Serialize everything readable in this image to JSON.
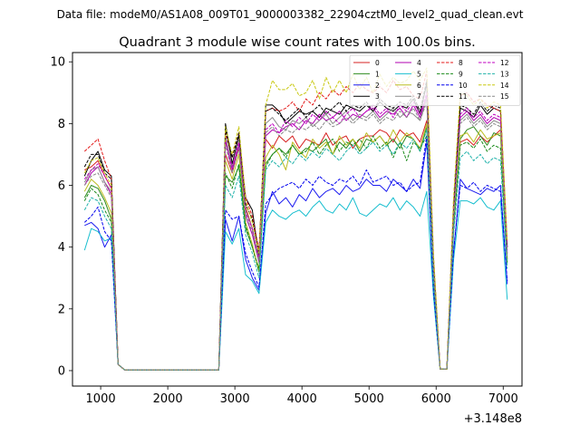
{
  "suptitle": "Data file: modeM0/AS1A08_009T01_9000003382_22904cztM0_level2_quad_clean.evt",
  "chart_data": {
    "type": "line",
    "title": "Quadrant 3 module wise count rates with 100.0s bins.",
    "xlabel": "",
    "ylabel": "",
    "x_offset_label": "+3.148e8",
    "xlim": [
      580,
      7280
    ],
    "ylim": [
      -0.5,
      10.3
    ],
    "xticks": [
      1000,
      2000,
      3000,
      4000,
      5000,
      6000,
      7000
    ],
    "yticks": [
      0,
      2,
      4,
      6,
      8,
      10
    ],
    "grid": false,
    "legend_location": "top-right",
    "legend_columns": 4,
    "x": [
      760,
      860,
      960,
      1060,
      1160,
      1260,
      1360,
      1460,
      1560,
      1660,
      1760,
      1860,
      1960,
      2060,
      2160,
      2260,
      2360,
      2460,
      2560,
      2660,
      2760,
      2860,
      2960,
      3060,
      3160,
      3260,
      3360,
      3460,
      3560,
      3660,
      3760,
      3860,
      3960,
      4060,
      4160,
      4260,
      4360,
      4460,
      4560,
      4660,
      4760,
      4860,
      4960,
      5060,
      5160,
      5260,
      5360,
      5460,
      5560,
      5660,
      5760,
      5860,
      5960,
      6060,
      6160,
      6260,
      6360,
      6460,
      6560,
      6660,
      6760,
      6860,
      6960,
      7060
    ],
    "series": [
      {
        "name": "0",
        "color": "#d62020",
        "style": "solid",
        "values": [
          6.5,
          6.6,
          6.8,
          6.3,
          5.9,
          0.2,
          0.02,
          0.02,
          0.02,
          0.02,
          0.02,
          0.02,
          0.02,
          0.02,
          0.02,
          0.02,
          0.02,
          0.02,
          0.02,
          0.02,
          0.02,
          7.0,
          6.4,
          7.2,
          5.3,
          4.6,
          3.6,
          7.5,
          7.2,
          7.6,
          7.4,
          7.6,
          7.2,
          7.5,
          7.4,
          7.3,
          7.7,
          7.3,
          7.5,
          7.6,
          7.2,
          7.5,
          7.6,
          7.6,
          7.8,
          7.7,
          7.4,
          7.8,
          7.6,
          7.7,
          7.4,
          8.1,
          3.0,
          0.05,
          0.05,
          4.9,
          7.4,
          7.5,
          7.3,
          7.6,
          7.4,
          7.6,
          7.8,
          3.6
        ]
      },
      {
        "name": "1",
        "color": "#2e8b1e",
        "style": "solid",
        "values": [
          5.6,
          6.0,
          5.9,
          5.5,
          4.9,
          0.2,
          0.02,
          0.02,
          0.02,
          0.02,
          0.02,
          0.02,
          0.02,
          0.02,
          0.02,
          0.02,
          0.02,
          0.02,
          0.02,
          0.02,
          0.02,
          6.3,
          6.1,
          6.6,
          4.6,
          4.0,
          3.3,
          6.7,
          7.0,
          7.2,
          7.0,
          7.3,
          7.0,
          7.2,
          7.1,
          7.3,
          7.5,
          7.0,
          7.4,
          7.2,
          7.5,
          7.1,
          7.5,
          7.4,
          7.6,
          7.3,
          7.5,
          7.2,
          7.6,
          7.5,
          7.1,
          7.9,
          3.0,
          0.05,
          0.05,
          4.7,
          7.5,
          7.8,
          7.9,
          7.6,
          7.3,
          7.7,
          7.6,
          3.5
        ]
      },
      {
        "name": "2",
        "color": "#1c1cf0",
        "style": "solid",
        "values": [
          4.7,
          4.8,
          4.6,
          4.0,
          4.4,
          0.2,
          0.02,
          0.02,
          0.02,
          0.02,
          0.02,
          0.02,
          0.02,
          0.02,
          0.02,
          0.02,
          0.02,
          0.02,
          0.02,
          0.02,
          0.02,
          4.9,
          4.2,
          5.0,
          3.6,
          3.0,
          2.6,
          5.1,
          5.8,
          5.4,
          5.6,
          5.3,
          5.7,
          5.5,
          5.9,
          5.6,
          5.8,
          5.9,
          5.7,
          6.0,
          5.8,
          5.9,
          6.2,
          6.0,
          6.0,
          5.8,
          6.2,
          6.0,
          5.8,
          6.2,
          5.9,
          7.4,
          2.5,
          0.05,
          0.05,
          3.8,
          6.2,
          5.9,
          5.8,
          5.7,
          5.9,
          5.8,
          6.0,
          2.8
        ]
      },
      {
        "name": "3",
        "color": "#000000",
        "style": "solid",
        "values": [
          6.3,
          6.8,
          7.1,
          6.5,
          6.3,
          0.2,
          0.02,
          0.02,
          0.02,
          0.02,
          0.02,
          0.02,
          0.02,
          0.02,
          0.02,
          0.02,
          0.02,
          0.02,
          0.02,
          0.02,
          0.02,
          8.0,
          6.7,
          7.6,
          5.6,
          5.2,
          3.7,
          8.6,
          8.6,
          8.4,
          8.0,
          8.2,
          8.4,
          8.3,
          8.4,
          8.2,
          8.5,
          8.4,
          8.3,
          8.6,
          8.5,
          8.4,
          8.6,
          8.4,
          8.7,
          8.5,
          8.4,
          8.6,
          8.5,
          8.8,
          8.3,
          9.3,
          3.5,
          0.05,
          0.05,
          5.2,
          8.5,
          8.4,
          8.2,
          8.6,
          8.3,
          8.5,
          8.4,
          4.0
        ]
      },
      {
        "name": "4",
        "color": "#b000b0",
        "style": "solid",
        "values": [
          6.0,
          6.4,
          6.6,
          6.1,
          5.7,
          0.2,
          0.02,
          0.02,
          0.02,
          0.02,
          0.02,
          0.02,
          0.02,
          0.02,
          0.02,
          0.02,
          0.02,
          0.02,
          0.02,
          0.02,
          0.02,
          7.5,
          6.5,
          7.3,
          5.0,
          4.4,
          3.5,
          7.6,
          7.8,
          7.7,
          7.9,
          8.0,
          7.8,
          8.1,
          8.0,
          8.3,
          8.1,
          8.2,
          8.4,
          8.1,
          8.3,
          8.2,
          8.4,
          8.5,
          8.2,
          8.4,
          8.3,
          8.5,
          8.2,
          8.6,
          8.2,
          8.9,
          3.4,
          0.05,
          0.05,
          5.0,
          8.2,
          8.4,
          8.1,
          8.3,
          8.0,
          8.2,
          8.1,
          3.8
        ]
      },
      {
        "name": "5",
        "color": "#17becf",
        "style": "solid",
        "values": [
          3.9,
          4.6,
          4.5,
          4.2,
          4.3,
          0.2,
          0.02,
          0.02,
          0.02,
          0.02,
          0.02,
          0.02,
          0.02,
          0.02,
          0.02,
          0.02,
          0.02,
          0.02,
          0.02,
          0.02,
          0.02,
          4.5,
          4.1,
          4.6,
          3.1,
          2.9,
          2.5,
          4.8,
          5.2,
          5.0,
          4.9,
          5.1,
          5.2,
          5.0,
          5.3,
          5.5,
          5.2,
          5.1,
          5.4,
          5.2,
          5.6,
          5.1,
          5.0,
          5.2,
          5.4,
          5.3,
          5.6,
          5.2,
          5.5,
          5.3,
          5.0,
          5.8,
          2.4,
          0.05,
          0.05,
          3.6,
          5.5,
          5.5,
          5.4,
          5.6,
          5.3,
          5.2,
          5.5,
          2.3
        ]
      },
      {
        "name": "6",
        "color": "#bcbd22",
        "style": "solid",
        "values": [
          5.8,
          6.2,
          6.0,
          5.6,
          5.1,
          0.2,
          0.02,
          0.02,
          0.02,
          0.02,
          0.02,
          0.02,
          0.02,
          0.02,
          0.02,
          0.02,
          0.02,
          0.02,
          0.02,
          0.02,
          0.02,
          6.8,
          6.2,
          7.0,
          4.8,
          4.1,
          3.2,
          6.9,
          7.3,
          7.0,
          6.5,
          7.4,
          7.1,
          6.9,
          7.5,
          7.2,
          7.4,
          7.0,
          7.6,
          7.3,
          7.5,
          7.2,
          7.7,
          7.4,
          7.6,
          7.3,
          7.8,
          7.4,
          7.7,
          7.5,
          7.2,
          8.0,
          3.1,
          0.05,
          0.05,
          4.8,
          7.6,
          7.7,
          7.4,
          7.8,
          7.5,
          7.6,
          7.7,
          3.6
        ]
      },
      {
        "name": "7",
        "color": "#8c8c8c",
        "style": "solid",
        "values": [
          6.1,
          6.5,
          6.6,
          6.1,
          5.8,
          0.2,
          0.02,
          0.02,
          0.02,
          0.02,
          0.02,
          0.02,
          0.02,
          0.02,
          0.02,
          0.02,
          0.02,
          0.02,
          0.02,
          0.02,
          0.02,
          7.6,
          6.6,
          7.5,
          5.2,
          4.6,
          3.6,
          8.0,
          8.2,
          7.9,
          7.8,
          8.1,
          8.0,
          8.2,
          7.9,
          8.1,
          8.3,
          8.0,
          8.2,
          8.4,
          8.1,
          8.3,
          8.2,
          8.4,
          8.1,
          8.3,
          8.5,
          8.2,
          8.4,
          8.3,
          8.1,
          8.8,
          3.3,
          0.05,
          0.05,
          5.0,
          8.1,
          8.3,
          8.0,
          8.2,
          7.9,
          8.1,
          8.0,
          3.8
        ]
      },
      {
        "name": "8",
        "color": "#e41a1a",
        "style": "dashed",
        "values": [
          7.1,
          7.3,
          7.5,
          6.8,
          6.2,
          0.2,
          0.02,
          0.02,
          0.02,
          0.02,
          0.02,
          0.02,
          0.02,
          0.02,
          0.02,
          0.02,
          0.02,
          0.02,
          0.02,
          0.02,
          0.02,
          7.7,
          6.9,
          7.7,
          5.6,
          5.0,
          3.9,
          8.4,
          8.5,
          8.4,
          8.5,
          8.7,
          8.4,
          8.8,
          8.6,
          9.0,
          8.8,
          9.1,
          8.9,
          9.2,
          9.0,
          9.3,
          9.1,
          9.0,
          9.2,
          9.0,
          9.4,
          9.1,
          9.2,
          8.9,
          8.8,
          9.7,
          3.7,
          0.05,
          0.05,
          5.5,
          8.9,
          9.0,
          8.7,
          8.8,
          8.6,
          8.5,
          8.4,
          4.1
        ]
      },
      {
        "name": "9",
        "color": "#1a8a1a",
        "style": "dashed",
        "values": [
          5.5,
          5.9,
          5.7,
          5.2,
          4.8,
          0.2,
          0.02,
          0.02,
          0.02,
          0.02,
          0.02,
          0.02,
          0.02,
          0.02,
          0.02,
          0.02,
          0.02,
          0.02,
          0.02,
          0.02,
          0.02,
          6.4,
          5.9,
          6.7,
          4.7,
          4.0,
          3.2,
          6.6,
          7.0,
          7.2,
          6.9,
          7.3,
          7.0,
          7.1,
          7.4,
          7.0,
          7.3,
          7.5,
          7.1,
          7.4,
          7.3,
          7.5,
          7.2,
          7.6,
          7.2,
          7.4,
          6.9,
          7.4,
          6.8,
          7.4,
          7.2,
          7.6,
          2.9,
          0.05,
          0.05,
          4.6,
          7.3,
          7.4,
          7.2,
          7.5,
          7.1,
          7.3,
          7.2,
          3.4
        ]
      },
      {
        "name": "10",
        "color": "#0000ee",
        "style": "dashed",
        "values": [
          4.8,
          5.0,
          5.3,
          4.5,
          4.2,
          0.2,
          0.02,
          0.02,
          0.02,
          0.02,
          0.02,
          0.02,
          0.02,
          0.02,
          0.02,
          0.02,
          0.02,
          0.02,
          0.02,
          0.02,
          0.02,
          5.2,
          4.9,
          5.0,
          3.8,
          3.2,
          2.7,
          5.4,
          5.7,
          5.9,
          6.0,
          6.1,
          5.9,
          6.2,
          6.0,
          6.3,
          6.1,
          6.0,
          6.2,
          6.1,
          6.3,
          6.0,
          6.5,
          6.1,
          6.2,
          6.3,
          6.0,
          6.1,
          5.8,
          6.0,
          6.1,
          7.6,
          2.6,
          0.05,
          0.05,
          3.9,
          6.0,
          5.9,
          6.1,
          5.8,
          6.0,
          5.9,
          5.8,
          2.9
        ]
      },
      {
        "name": "11",
        "color": "#000000",
        "style": "dashed",
        "values": [
          6.6,
          7.0,
          7.0,
          6.4,
          6.2,
          0.2,
          0.02,
          0.02,
          0.02,
          0.02,
          0.02,
          0.02,
          0.02,
          0.02,
          0.02,
          0.02,
          0.02,
          0.02,
          0.02,
          0.02,
          0.02,
          7.8,
          6.9,
          7.7,
          5.4,
          4.9,
          3.8,
          8.4,
          8.5,
          8.3,
          8.1,
          8.3,
          8.5,
          8.2,
          8.4,
          8.6,
          8.3,
          8.5,
          8.7,
          8.4,
          8.6,
          8.5,
          8.7,
          8.4,
          8.8,
          8.6,
          8.5,
          8.7,
          8.6,
          8.9,
          8.4,
          9.4,
          3.6,
          0.05,
          0.05,
          5.3,
          8.6,
          8.5,
          8.3,
          8.7,
          8.4,
          8.6,
          8.5,
          4.0
        ]
      },
      {
        "name": "12",
        "color": "#c000c0",
        "style": "dashed",
        "values": [
          6.2,
          6.5,
          6.7,
          6.3,
          5.9,
          0.2,
          0.02,
          0.02,
          0.02,
          0.02,
          0.02,
          0.02,
          0.02,
          0.02,
          0.02,
          0.02,
          0.02,
          0.02,
          0.02,
          0.02,
          0.02,
          7.4,
          6.6,
          7.4,
          5.1,
          4.6,
          3.6,
          7.8,
          8.0,
          7.7,
          8.1,
          7.9,
          8.2,
          8.0,
          8.3,
          8.1,
          8.4,
          8.2,
          8.0,
          8.3,
          8.5,
          8.2,
          8.4,
          8.6,
          8.3,
          8.5,
          8.2,
          8.6,
          8.4,
          8.7,
          8.3,
          9.0,
          3.4,
          0.05,
          0.05,
          5.1,
          8.3,
          8.5,
          8.2,
          8.4,
          8.1,
          8.3,
          8.2,
          3.9
        ]
      },
      {
        "name": "13",
        "color": "#20b2aa",
        "style": "dashed",
        "values": [
          5.2,
          5.6,
          5.5,
          5.0,
          4.6,
          0.2,
          0.02,
          0.02,
          0.02,
          0.02,
          0.02,
          0.02,
          0.02,
          0.02,
          0.02,
          0.02,
          0.02,
          0.02,
          0.02,
          0.02,
          0.02,
          6.0,
          5.6,
          6.3,
          4.4,
          3.8,
          3.0,
          6.5,
          6.8,
          6.6,
          6.9,
          6.7,
          7.0,
          6.8,
          7.1,
          6.9,
          7.2,
          7.0,
          6.8,
          7.1,
          7.3,
          7.0,
          7.2,
          7.4,
          7.1,
          7.3,
          7.0,
          7.4,
          7.2,
          7.5,
          7.1,
          7.8,
          2.9,
          0.05,
          0.05,
          4.4,
          6.9,
          7.1,
          6.8,
          7.0,
          6.7,
          6.9,
          6.8,
          3.3
        ]
      },
      {
        "name": "14",
        "color": "#c8c810",
        "style": "dashed",
        "values": [
          6.4,
          6.8,
          6.9,
          6.4,
          6.0,
          0.2,
          0.02,
          0.02,
          0.02,
          0.02,
          0.02,
          0.02,
          0.02,
          0.02,
          0.02,
          0.02,
          0.02,
          0.02,
          0.02,
          0.02,
          0.02,
          7.9,
          7.0,
          7.9,
          5.5,
          4.8,
          3.8,
          8.6,
          9.4,
          9.1,
          9.1,
          9.3,
          8.9,
          9.0,
          9.4,
          8.8,
          9.5,
          9.0,
          9.4,
          9.0,
          9.6,
          9.1,
          9.5,
          9.0,
          9.6,
          9.2,
          9.5,
          9.3,
          9.4,
          9.7,
          9.4,
          9.8,
          3.8,
          0.05,
          0.05,
          5.6,
          9.0,
          8.9,
          8.6,
          8.8,
          8.5,
          8.7,
          8.6,
          4.2
        ]
      },
      {
        "name": "15",
        "color": "#888888",
        "style": "dashed",
        "values": [
          6.0,
          6.3,
          6.4,
          6.0,
          5.6,
          0.2,
          0.02,
          0.02,
          0.02,
          0.02,
          0.02,
          0.02,
          0.02,
          0.02,
          0.02,
          0.02,
          0.02,
          0.02,
          0.02,
          0.02,
          0.02,
          7.3,
          6.4,
          7.2,
          5.0,
          4.5,
          3.5,
          7.7,
          7.9,
          7.6,
          7.8,
          7.7,
          7.9,
          7.8,
          8.0,
          7.8,
          8.1,
          7.9,
          8.0,
          8.2,
          8.0,
          8.2,
          8.1,
          8.3,
          8.0,
          8.2,
          8.1,
          8.4,
          8.2,
          8.5,
          8.1,
          8.7,
          3.3,
          0.05,
          0.05,
          4.9,
          8.0,
          8.2,
          7.9,
          8.1,
          7.8,
          8.0,
          7.9,
          3.7
        ]
      }
    ]
  }
}
